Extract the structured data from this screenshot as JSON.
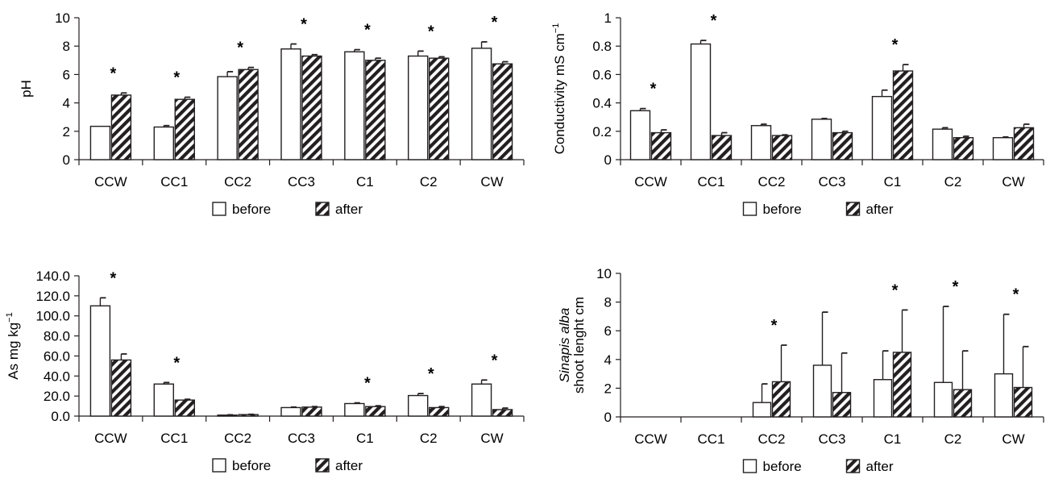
{
  "chart_data": [
    {
      "type": "bar",
      "categories": [
        "CCW",
        "CC1",
        "CC2",
        "CC3",
        "C1",
        "C2",
        "CW"
      ],
      "ylabel": "pH",
      "ylim": [
        0,
        10
      ],
      "yticks": [
        "0",
        "2",
        "4",
        "6",
        "8",
        "10"
      ],
      "series": [
        {
          "name": "before",
          "values": [
            2.35,
            2.3,
            5.85,
            7.8,
            7.6,
            7.3,
            7.85
          ],
          "errors": [
            0,
            0.1,
            0.35,
            0.35,
            0.15,
            0.35,
            0.45
          ]
        },
        {
          "name": "after",
          "values": [
            4.55,
            4.25,
            6.35,
            7.3,
            7.0,
            7.15,
            6.75
          ],
          "errors": [
            0.15,
            0.15,
            0.15,
            0.1,
            0.15,
            0.1,
            0.15
          ]
        }
      ],
      "significant": [
        true,
        true,
        true,
        true,
        true,
        true,
        true
      ],
      "annotation_symbol": "*",
      "legend": "bottom-center",
      "grid": false
    },
    {
      "type": "bar",
      "categories": [
        "CCW",
        "CC1",
        "CC2",
        "CC3",
        "C1",
        "C2",
        "CW"
      ],
      "ylabel": "Conductivity mS cm",
      "ylabel_sup": "−1",
      "ylim": [
        0,
        1
      ],
      "yticks": [
        "0",
        "0.2",
        "0.4",
        "0.6",
        "0.8",
        "1"
      ],
      "series": [
        {
          "name": "before",
          "values": [
            0.345,
            0.815,
            0.24,
            0.285,
            0.445,
            0.215,
            0.155
          ],
          "errors": [
            0.015,
            0.025,
            0.01,
            0.005,
            0.045,
            0.01,
            0.005
          ]
        },
        {
          "name": "after",
          "values": [
            0.19,
            0.17,
            0.17,
            0.19,
            0.625,
            0.155,
            0.225
          ],
          "errors": [
            0.02,
            0.02,
            0.005,
            0.01,
            0.045,
            0.01,
            0.025
          ]
        }
      ],
      "significant": [
        true,
        true,
        false,
        false,
        true,
        false,
        false
      ],
      "annotation_symbol": "*",
      "legend": "bottom-center",
      "grid": false
    },
    {
      "type": "bar",
      "categories": [
        "CCW",
        "CC1",
        "CC2",
        "CC3",
        "C1",
        "C2",
        "CW"
      ],
      "ylabel": "As mg kg",
      "ylabel_sup": "−1",
      "ylim": [
        0,
        140
      ],
      "yticks": [
        "0.0",
        "20.0",
        "40.0",
        "60.0",
        "80.0",
        "100.0",
        "120.0",
        "140.0"
      ],
      "series": [
        {
          "name": "before",
          "values": [
            110,
            32,
            1,
            8.5,
            12.5,
            20.5,
            32
          ],
          "errors": [
            8,
            1.5,
            0.3,
            0.5,
            0.7,
            2,
            4
          ]
        },
        {
          "name": "after",
          "values": [
            56,
            16,
            1.5,
            9,
            9.5,
            8.5,
            6.5
          ],
          "errors": [
            6,
            0.8,
            0.3,
            0.5,
            0.8,
            1,
            1.5
          ]
        }
      ],
      "significant": [
        true,
        true,
        false,
        false,
        true,
        true,
        true
      ],
      "annotation_symbol": "*",
      "legend": "bottom-center",
      "grid": false
    },
    {
      "type": "bar",
      "categories": [
        "CCW",
        "CC1",
        "CC2",
        "CC3",
        "C1",
        "C2",
        "CW"
      ],
      "ylabel_line1": "Sinapis alba",
      "ylabel_line2": "shoot lenght cm",
      "ylim": [
        0,
        10
      ],
      "yticks": [
        "0",
        "2",
        "4",
        "6",
        "8",
        "10"
      ],
      "series": [
        {
          "name": "before",
          "values": [
            0,
            0,
            1.0,
            3.6,
            2.6,
            2.4,
            3.0
          ],
          "errors": [
            0,
            0,
            1.3,
            3.7,
            2.0,
            5.3,
            4.15
          ]
        },
        {
          "name": "after",
          "values": [
            0,
            0,
            2.45,
            1.7,
            4.5,
            1.9,
            2.05
          ],
          "errors": [
            0,
            0,
            2.55,
            2.75,
            2.95,
            2.7,
            2.85
          ]
        }
      ],
      "significant": [
        false,
        false,
        true,
        false,
        true,
        true,
        true
      ],
      "annotation_symbol": "*",
      "legend": "bottom-center",
      "grid": false
    }
  ]
}
